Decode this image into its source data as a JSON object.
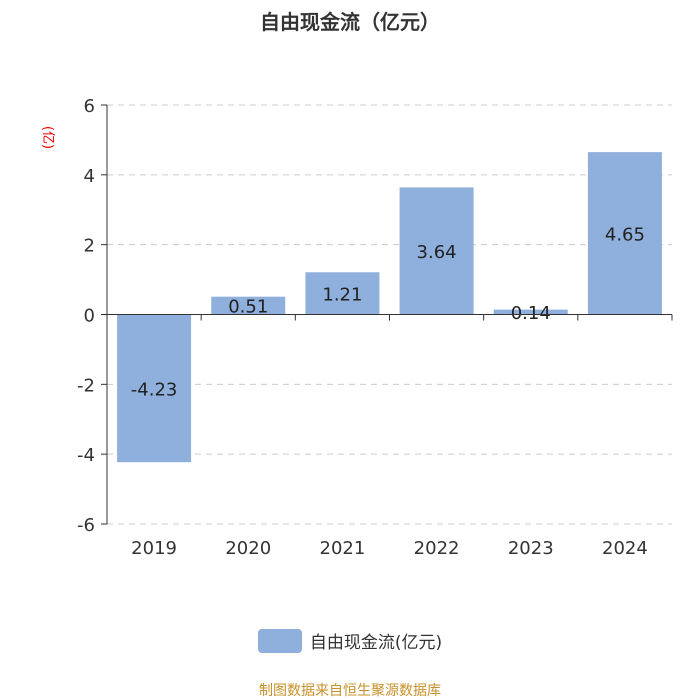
{
  "chart_data": {
    "type": "bar",
    "title": "自由现金流（亿元）",
    "ylabel": "(亿)",
    "categories": [
      "2019",
      "2020",
      "2021",
      "2022",
      "2023",
      "2024"
    ],
    "series": [
      {
        "name": "自由现金流(亿元)",
        "values": [
          -4.23,
          0.51,
          1.21,
          3.64,
          0.14,
          4.65
        ]
      }
    ],
    "data_labels": [
      "-4.23",
      "0.51",
      "1.21",
      "3.64",
      "0.14",
      "4.65"
    ],
    "ylim": [
      -6,
      6
    ],
    "yticks": [
      "-6",
      "-4",
      "-2",
      "0",
      "2",
      "4",
      "6"
    ],
    "grid": true,
    "legend": "bottom",
    "color": "#8fb0dc"
  },
  "source": "制图数据来自恒生聚源数据库"
}
